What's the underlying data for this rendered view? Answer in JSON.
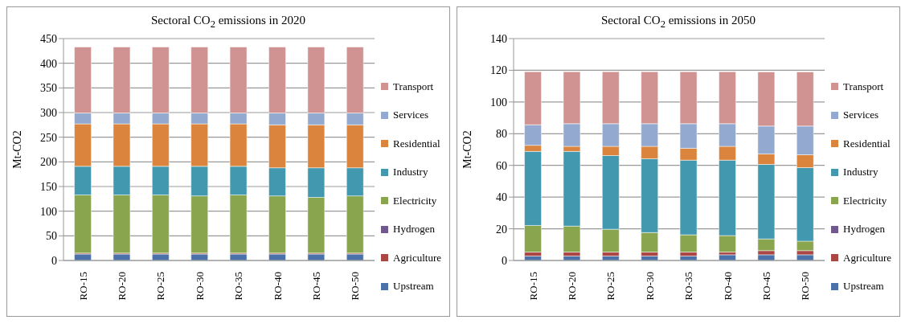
{
  "chart_data": [
    {
      "type": "bar",
      "title": "Sectoral CO$_{2}$ emissions  in 2020",
      "ylabel": "Mt-CO2",
      "categories": [
        "RO-15",
        "RO-20",
        "RO-25",
        "RO-30",
        "RO-35",
        "RO-40",
        "RO-45",
        "RO-50"
      ],
      "stacked": true,
      "ylim": [
        0,
        450
      ],
      "yticks": [
        0,
        50,
        100,
        150,
        200,
        250,
        300,
        350,
        400,
        450
      ],
      "grid": "y",
      "legend": "right",
      "series": [
        {
          "name": "Upstream",
          "color": "#4a72a8",
          "values": [
            13,
            13,
            13,
            13,
            13,
            13,
            13,
            13
          ]
        },
        {
          "name": "Agriculture",
          "color": "#aa4643",
          "values": [
            2,
            2,
            2,
            2,
            2,
            2,
            2,
            2
          ]
        },
        {
          "name": "Hydrogen",
          "color": "#71588f",
          "values": [
            0,
            0,
            0,
            0,
            0,
            0,
            0,
            0
          ]
        },
        {
          "name": "Electricity",
          "color": "#89a54e",
          "values": [
            118,
            118,
            118,
            116,
            118,
            116,
            113,
            116
          ]
        },
        {
          "name": "Industry",
          "color": "#4198af",
          "values": [
            58,
            58,
            58,
            60,
            58,
            57,
            60,
            57
          ]
        },
        {
          "name": "Residential",
          "color": "#db843d",
          "values": [
            86,
            86,
            86,
            86,
            86,
            87,
            87,
            87
          ]
        },
        {
          "name": "Services",
          "color": "#93a9cf",
          "values": [
            22,
            22,
            22,
            22,
            22,
            24,
            24,
            24
          ]
        },
        {
          "name": "Transport",
          "color": "#d19392",
          "values": [
            134,
            134,
            134,
            134,
            134,
            134,
            134,
            134
          ]
        }
      ]
    },
    {
      "type": "bar",
      "title": "Sectoral CO$_{2}$ emissions  in 2050",
      "ylabel": "Mt-CO2",
      "categories": [
        "RO-15",
        "RO-20",
        "RO-25",
        "RO-30",
        "RO-35",
        "RO-40",
        "RO-45",
        "RO-50"
      ],
      "stacked": true,
      "ylim": [
        0,
        140
      ],
      "yticks": [
        0,
        20,
        40,
        60,
        80,
        100,
        120,
        140
      ],
      "grid": "y",
      "legend": "right",
      "series": [
        {
          "name": "Upstream",
          "color": "#4a72a8",
          "values": [
            2.8,
            2.8,
            2.8,
            2.8,
            2.8,
            3.6,
            3.6,
            3.6
          ]
        },
        {
          "name": "Agriculture",
          "color": "#aa4643",
          "values": [
            2.5,
            2.5,
            2.5,
            2.5,
            2.5,
            1.7,
            2.6,
            2.6
          ]
        },
        {
          "name": "Hydrogen",
          "color": "#71588f",
          "values": [
            0,
            0,
            0,
            0,
            0,
            0,
            0,
            0
          ]
        },
        {
          "name": "Electricity",
          "color": "#89a54e",
          "values": [
            16.8,
            16.4,
            14.4,
            12.3,
            10.9,
            10.4,
            7.4,
            6.0
          ]
        },
        {
          "name": "Industry",
          "color": "#4198af",
          "values": [
            46.7,
            47.1,
            46.5,
            46.6,
            47.1,
            47.6,
            47.0,
            46.4
          ]
        },
        {
          "name": "Residential",
          "color": "#db843d",
          "values": [
            3.9,
            3.2,
            5.8,
            7.8,
            7.5,
            8.7,
            6.6,
            8.1
          ]
        },
        {
          "name": "Services",
          "color": "#93a9cf",
          "values": [
            12.9,
            14.3,
            14.3,
            14.3,
            15.5,
            14.3,
            17.6,
            18.1
          ]
        },
        {
          "name": "Transport",
          "color": "#d19392",
          "values": [
            33.5,
            32.8,
            32.8,
            32.8,
            32.8,
            32.8,
            34.2,
            34.2
          ]
        }
      ]
    }
  ]
}
